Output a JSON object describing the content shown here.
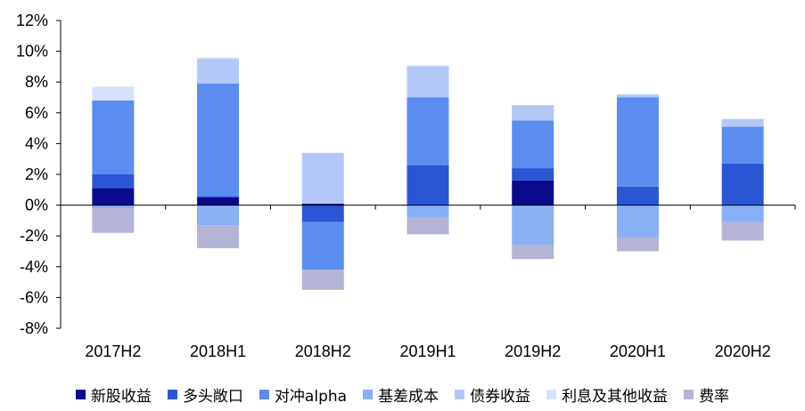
{
  "chart_data": {
    "type": "bar",
    "stacked": true,
    "categories": [
      "2017H2",
      "2018H1",
      "2018H2",
      "2019H1",
      "2019H2",
      "2020H1",
      "2020H2"
    ],
    "y_ticks": [
      "12%",
      "10%",
      "8%",
      "6%",
      "4%",
      "2%",
      "0%",
      "-2%",
      "-4%",
      "-6%",
      "-8%"
    ],
    "ylim": [
      -8,
      12
    ],
    "grid": false,
    "legend_position": "bottom",
    "series": [
      {
        "name": "新股收益",
        "color": "#0a0a8c",
        "values": [
          1.1,
          0.5,
          0.1,
          0.0,
          1.6,
          0.0,
          0.0
        ]
      },
      {
        "name": "多头敞口",
        "color": "#2a55d4",
        "values": [
          0.9,
          0.1,
          -1.1,
          2.6,
          0.8,
          1.2,
          2.7
        ]
      },
      {
        "name": "对冲alpha",
        "color": "#5b8cf0",
        "values": [
          4.8,
          7.3,
          -3.1,
          4.4,
          3.1,
          5.8,
          2.4
        ]
      },
      {
        "name": "基差成本",
        "color": "#89aff5",
        "values": [
          -0.2,
          -1.3,
          0.0,
          -0.8,
          -2.6,
          -2.1,
          -1.1
        ]
      },
      {
        "name": "债券收益",
        "color": "#b3c8f8",
        "values": [
          0.0,
          1.6,
          3.3,
          2.0,
          1.0,
          0.2,
          0.5
        ]
      },
      {
        "name": "利息及其他收益",
        "color": "#d6e2fb",
        "values": [
          0.9,
          0.1,
          0.0,
          0.1,
          0.0,
          0.0,
          0.0
        ]
      },
      {
        "name": "费率",
        "color": "#b4b4d6",
        "values": [
          -1.6,
          -1.5,
          -1.3,
          -1.1,
          -0.9,
          -0.9,
          -1.2
        ]
      }
    ]
  }
}
